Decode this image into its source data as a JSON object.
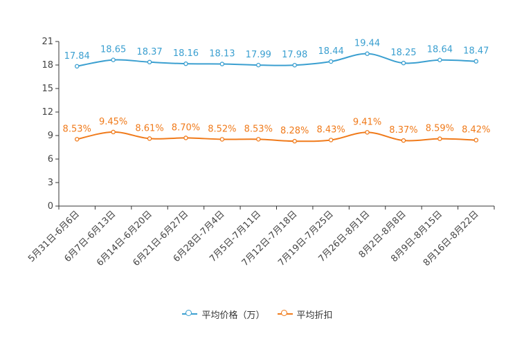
{
  "chart_data": {
    "type": "line",
    "title": "",
    "xlabel": "",
    "ylabel": "",
    "ylim": [
      0,
      21
    ],
    "yticks": [
      0,
      3,
      6,
      9,
      12,
      15,
      18,
      21
    ],
    "grid": false,
    "categories": [
      "5月31日-6月6日",
      "6月7日-6月13日",
      "6月14日-6月20日",
      "6月21日-6月27日",
      "6月28日-7月4日",
      "7月5日-7月11日",
      "7月12日-7月18日",
      "7月19日-7月25日",
      "7月26日-8月1日",
      "8月2日-8月8日",
      "8月9日-8月15日",
      "8月16日-8月22日"
    ],
    "series": [
      {
        "name": "平均价格（万）",
        "color": "#3a9fd0",
        "values": [
          17.84,
          18.65,
          18.37,
          18.16,
          18.13,
          17.99,
          17.98,
          18.44,
          19.44,
          18.25,
          18.64,
          18.47
        ],
        "labels": [
          "17.84",
          "18.65",
          "18.37",
          "18.16",
          "18.13",
          "17.99",
          "17.98",
          "18.44",
          "19.44",
          "18.25",
          "18.64",
          "18.47"
        ]
      },
      {
        "name": "平均折扣",
        "color": "#f07a1a",
        "values": [
          8.53,
          9.45,
          8.61,
          8.7,
          8.52,
          8.53,
          8.28,
          8.43,
          9.41,
          8.37,
          8.59,
          8.42
        ],
        "labels": [
          "8.53%",
          "9.45%",
          "8.61%",
          "8.70%",
          "8.52%",
          "8.53%",
          "8.28%",
          "8.43%",
          "9.41%",
          "8.37%",
          "8.59%",
          "8.42%"
        ]
      }
    ],
    "legend_position": "bottom-center"
  }
}
